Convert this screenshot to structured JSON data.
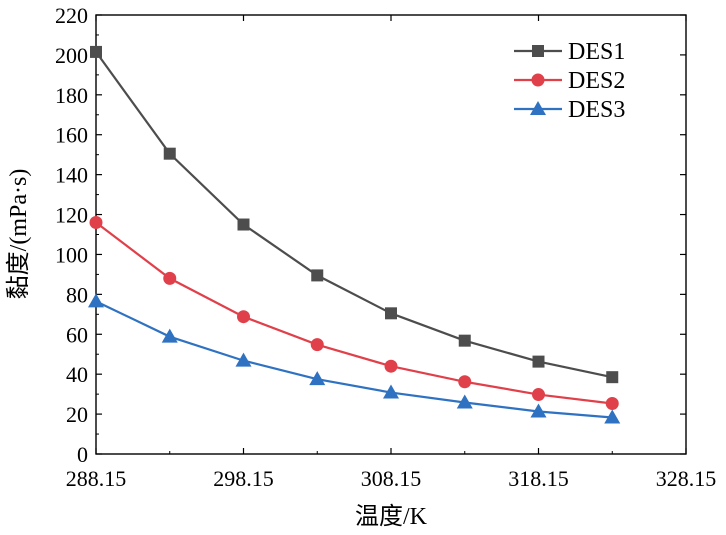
{
  "chart_data": {
    "type": "line",
    "title": "",
    "xlabel": "温度/K",
    "ylabel": "黏度/(mPa·s)",
    "xlim": [
      288.15,
      328.15
    ],
    "ylim": [
      0,
      220
    ],
    "xticks": [
      "288.15",
      "298.15",
      "308.15",
      "318.15",
      "328.15"
    ],
    "yticks": [
      "0",
      "20",
      "40",
      "60",
      "80",
      "100",
      "120",
      "140",
      "160",
      "180",
      "200",
      "220"
    ],
    "x": [
      288.15,
      293.15,
      298.15,
      303.15,
      308.15,
      313.15,
      318.15,
      323.15
    ],
    "series": [
      {
        "name": "DES1",
        "color": "#4d4d4d",
        "marker": "square",
        "values": [
          201.5,
          150.5,
          115.0,
          89.5,
          70.5,
          56.8,
          46.3,
          38.5
        ]
      },
      {
        "name": "DES2",
        "color": "#e0404a",
        "marker": "circle",
        "values": [
          116.0,
          88.0,
          68.8,
          54.8,
          44.0,
          36.2,
          29.8,
          25.3
        ]
      },
      {
        "name": "DES3",
        "color": "#2f72c2",
        "marker": "triangle",
        "values": [
          76.5,
          58.8,
          46.8,
          37.5,
          30.8,
          25.8,
          21.3,
          18.3
        ]
      }
    ],
    "legend": "top-right",
    "grid": false
  }
}
